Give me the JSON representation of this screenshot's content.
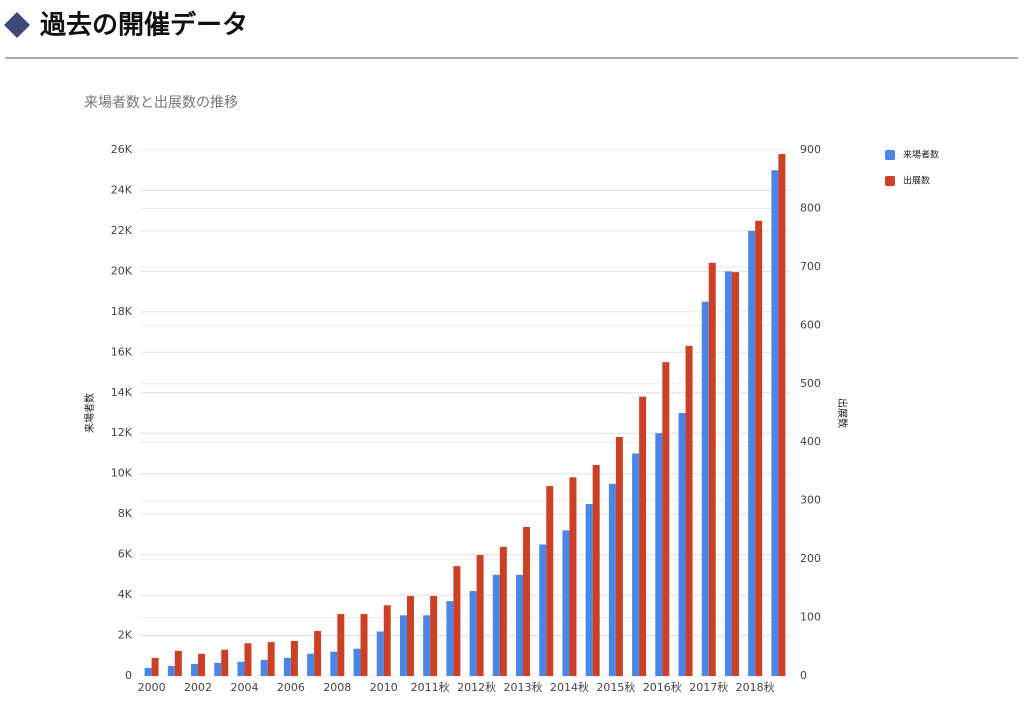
{
  "header": {
    "title": "過去の開催データ"
  },
  "chart_data": {
    "type": "bar",
    "title": "来場者数と出展数の推移",
    "y_label": "来場者数",
    "y2_label": "出展数",
    "categories": [
      "2000",
      null,
      "2002",
      null,
      "2004",
      null,
      "2006",
      null,
      "2008",
      null,
      "2010",
      null,
      "2011秋",
      null,
      "2012秋",
      null,
      "2013秋",
      null,
      "2014秋",
      null,
      "2015秋",
      null,
      "2016秋",
      null,
      "2017秋",
      null,
      "2018秋",
      null
    ],
    "series": [
      {
        "name": "来場者数",
        "color": "#4a86e8",
        "values": [
          400,
          500,
          600,
          650,
          700,
          800,
          900,
          1100,
          1200,
          1350,
          2200,
          3000,
          3000,
          3700,
          4200,
          5000,
          5000,
          6500,
          7200,
          8500,
          9500,
          11000,
          12000,
          13000,
          18500,
          20000,
          22000,
          25000
        ]
      },
      {
        "name": "出展数",
        "color": "#cc4125",
        "axis": "y2",
        "values": [
          31,
          43,
          38,
          45,
          56,
          58,
          60,
          77,
          106,
          106,
          121,
          137,
          137,
          188,
          207,
          221,
          255,
          325,
          340,
          361,
          409,
          478,
          537,
          565,
          707,
          691,
          779,
          893
        ]
      }
    ],
    "ylim": [
      0,
      26000
    ],
    "yticks": [
      0,
      {
        "value": 2000,
        "label": "2K"
      },
      {
        "value": 4000,
        "label": "4K"
      },
      {
        "value": 6000,
        "label": "6K"
      },
      {
        "value": 8000,
        "label": "8K"
      },
      {
        "value": 10000,
        "label": "10K"
      },
      {
        "value": 12000,
        "label": "12K"
      },
      {
        "value": 14000,
        "label": "14K"
      },
      {
        "value": 16000,
        "label": "16K"
      },
      {
        "value": 18000,
        "label": "18K"
      },
      {
        "value": 20000,
        "label": "20K"
      },
      {
        "value": 22000,
        "label": "22K"
      },
      {
        "value": 24000,
        "label": "24K"
      },
      {
        "value": 26000,
        "label": "26K"
      }
    ],
    "y2lim": [
      0,
      900
    ],
    "y2ticks": [
      0,
      100,
      200,
      300,
      400,
      500,
      600,
      700,
      800,
      900
    ],
    "grid": true,
    "legend": "right"
  }
}
